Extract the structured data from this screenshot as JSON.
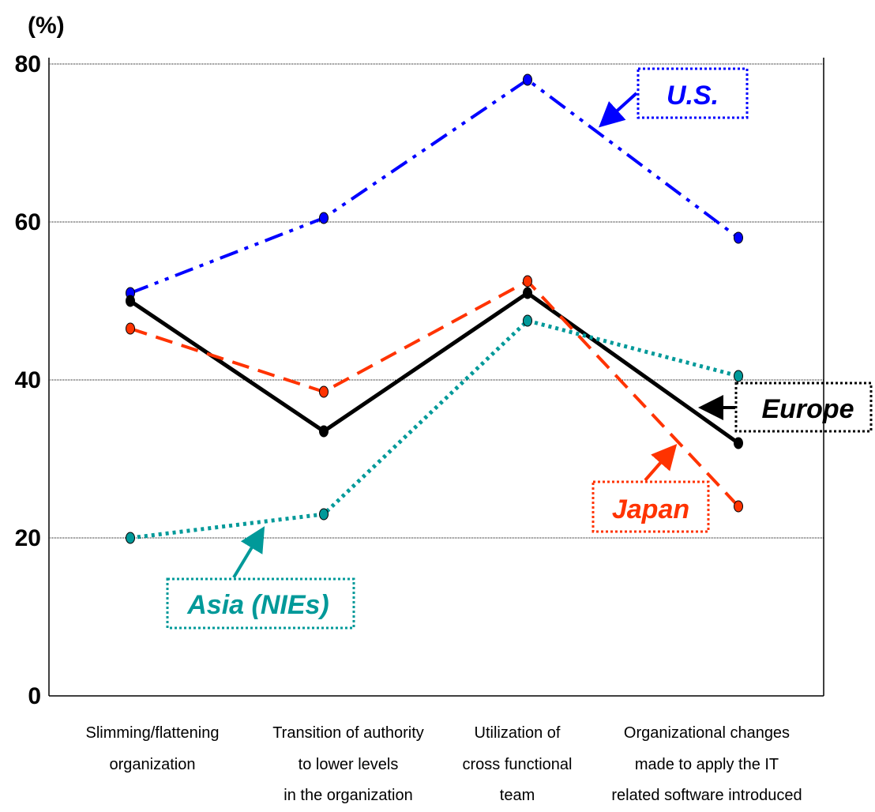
{
  "chart_data": {
    "type": "line",
    "ylabel": "(%)",
    "ylim": [
      0,
      80
    ],
    "yticks": [
      0,
      20,
      40,
      60,
      80
    ],
    "grid": true,
    "categories": [
      [
        "Slimming/flattening",
        "organization"
      ],
      [
        "Transition of authority",
        "to lower levels",
        "in the organization"
      ],
      [
        "Utilization of",
        "cross functional",
        "team"
      ],
      [
        "Organizational changes",
        "made to apply the IT",
        "related software introduced"
      ]
    ],
    "series": [
      {
        "name": "U.S.",
        "color": "#0000ff",
        "dash": "dashdotdot",
        "values": [
          51,
          60.5,
          78,
          58
        ]
      },
      {
        "name": "Europe",
        "color": "#000000",
        "dash": "solid",
        "values": [
          50,
          33.5,
          51,
          32
        ]
      },
      {
        "name": "Japan",
        "color": "#ff3300",
        "dash": "dash",
        "values": [
          46.5,
          38.5,
          52.5,
          24
        ]
      },
      {
        "name": "Asia (NIEs)",
        "color": "#009999",
        "dash": "dot",
        "values": [
          20,
          23,
          47.5,
          40.5
        ]
      }
    ]
  }
}
